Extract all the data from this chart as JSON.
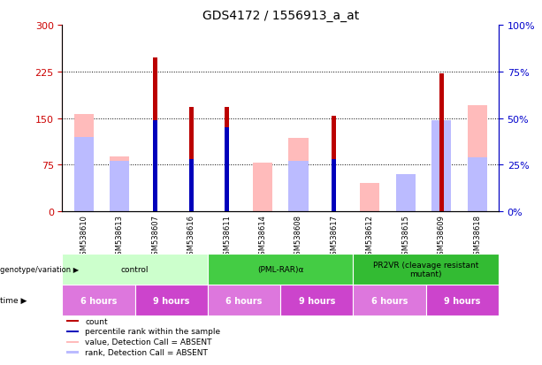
{
  "title": "GDS4172 / 1556913_a_at",
  "samples": [
    "GSM538610",
    "GSM538613",
    "GSM538607",
    "GSM538616",
    "GSM538611",
    "GSM538614",
    "GSM538608",
    "GSM538617",
    "GSM538612",
    "GSM538615",
    "GSM538609",
    "GSM538618"
  ],
  "count_values": [
    null,
    null,
    248,
    168,
    168,
    null,
    null,
    153,
    null,
    null,
    222,
    null
  ],
  "rank_values_pct": [
    null,
    null,
    49,
    28,
    45,
    null,
    null,
    28,
    null,
    null,
    null,
    null
  ],
  "absent_value_values": [
    157,
    88,
    null,
    null,
    null,
    78,
    118,
    null,
    45,
    null,
    null,
    170
  ],
  "absent_rank_pct": [
    40,
    27,
    null,
    null,
    null,
    null,
    27,
    null,
    null,
    20,
    49,
    29
  ],
  "ylim_left": [
    0,
    300
  ],
  "ylim_right": [
    0,
    100
  ],
  "yticks_left": [
    0,
    75,
    150,
    225,
    300
  ],
  "ytick_labels_left": [
    "0",
    "75",
    "150",
    "225",
    "300"
  ],
  "yticks_right": [
    0,
    25,
    50,
    75,
    100
  ],
  "ytick_labels_right": [
    "0%",
    "25%",
    "50%",
    "75%",
    "100%"
  ],
  "gridlines_at": [
    75,
    150,
    225
  ],
  "color_count": "#bb0000",
  "color_rank": "#0000bb",
  "color_absent_value": "#ffbbbb",
  "color_absent_rank": "#bbbbff",
  "genotype_groups": [
    {
      "label": "control",
      "start": 0,
      "end": 4,
      "color": "#ccffcc"
    },
    {
      "label": "(PML-RAR)α",
      "start": 4,
      "end": 8,
      "color": "#44cc44"
    },
    {
      "label": "PR2VR (cleavage resistant\nmutant)",
      "start": 8,
      "end": 12,
      "color": "#33bb33"
    }
  ],
  "time_groups": [
    {
      "label": "6 hours",
      "start": 0,
      "end": 2,
      "color": "#dd77dd"
    },
    {
      "label": "9 hours",
      "start": 2,
      "end": 4,
      "color": "#cc44cc"
    },
    {
      "label": "6 hours",
      "start": 4,
      "end": 6,
      "color": "#dd77dd"
    },
    {
      "label": "9 hours",
      "start": 6,
      "end": 8,
      "color": "#cc44cc"
    },
    {
      "label": "6 hours",
      "start": 8,
      "end": 10,
      "color": "#dd77dd"
    },
    {
      "label": "9 hours",
      "start": 10,
      "end": 12,
      "color": "#cc44cc"
    }
  ],
  "legend_items": [
    {
      "label": "count",
      "color": "#bb0000"
    },
    {
      "label": "percentile rank within the sample",
      "color": "#0000bb"
    },
    {
      "label": "value, Detection Call = ABSENT",
      "color": "#ffbbbb"
    },
    {
      "label": "rank, Detection Call = ABSENT",
      "color": "#bbbbff"
    }
  ],
  "left_label_color": "#cc0000",
  "right_label_color": "#0000cc",
  "wide_bar_width": 0.55,
  "narrow_bar_width": 0.12
}
